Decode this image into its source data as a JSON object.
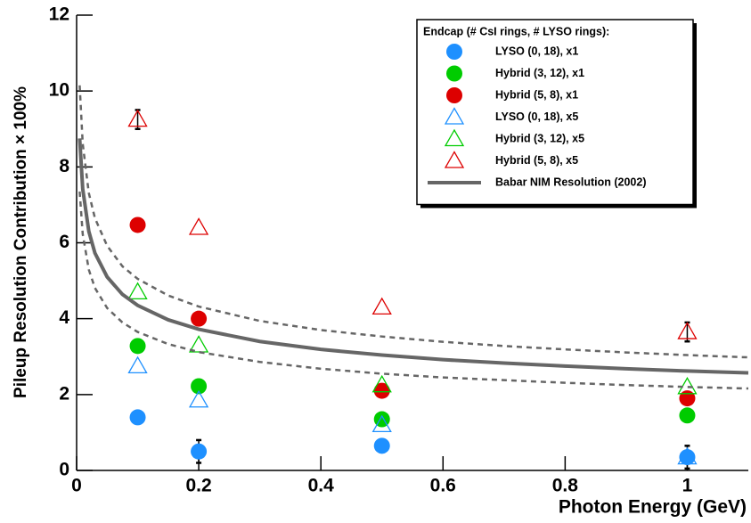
{
  "chart_data": {
    "type": "scatter",
    "x_label": "Photon Energy (GeV)",
    "y_label": "Pileup Resolution Contribution × 100%",
    "legend_title": "Endcap (# CsI rings, # LYSO rings):",
    "legend_position": "upper right",
    "xlim": [
      0,
      1.1
    ],
    "ylim": [
      0,
      12
    ],
    "xticks": [
      0,
      0.2,
      0.4,
      0.6,
      0.8,
      1
    ],
    "yticks": [
      0,
      2,
      4,
      6,
      8,
      10,
      12
    ],
    "series": [
      {
        "name": "LYSO (0, 18), x1",
        "color": "#1e90ff",
        "marker": "circle",
        "x": [
          0.1,
          0.2,
          0.5,
          1.0
        ],
        "values": [
          1.4,
          0.5,
          0.65,
          0.35
        ],
        "errors": [
          null,
          0.3,
          null,
          0.3
        ]
      },
      {
        "name": "Hybrid (3, 12), x1",
        "color": "#00cc00",
        "marker": "circle",
        "x": [
          0.1,
          0.2,
          0.5,
          1.0
        ],
        "values": [
          3.28,
          2.22,
          1.35,
          1.45
        ]
      },
      {
        "name": "Hybrid (5, 8), x1",
        "color": "#dd0000",
        "marker": "circle",
        "x": [
          0.1,
          0.2,
          0.5,
          1.0
        ],
        "values": [
          6.47,
          4.0,
          2.1,
          1.9
        ]
      },
      {
        "name": "LYSO (0, 18), x5",
        "color": "#1e90ff",
        "marker": "triangle",
        "x": [
          0.1,
          0.2,
          0.5,
          1.0
        ],
        "values": [
          2.75,
          1.85,
          1.2,
          0.35
        ]
      },
      {
        "name": "Hybrid (3, 12), x5",
        "color": "#00cc00",
        "marker": "triangle",
        "x": [
          0.1,
          0.2,
          0.5,
          1.0
        ],
        "values": [
          4.7,
          3.3,
          2.25,
          2.2
        ]
      },
      {
        "name": "Hybrid (5, 8), x5",
        "color": "#dd0000",
        "marker": "triangle",
        "x": [
          0.1,
          0.2,
          0.5,
          1.0
        ],
        "values": [
          9.25,
          6.4,
          4.3,
          3.65
        ],
        "errors": [
          0.25,
          null,
          null,
          0.25
        ]
      },
      {
        "name": "Babar NIM Resolution (2002)",
        "color": "#666666",
        "marker": "line",
        "x": [
          0.005,
          0.01,
          0.02,
          0.03,
          0.05,
          0.075,
          0.1,
          0.15,
          0.2,
          0.3,
          0.4,
          0.5,
          0.6,
          0.7,
          0.8,
          0.9,
          1.0,
          1.1
        ],
        "values": [
          8.75,
          7.42,
          6.3,
          5.73,
          5.1,
          4.64,
          4.35,
          3.97,
          3.72,
          3.4,
          3.19,
          3.04,
          2.92,
          2.83,
          2.75,
          2.68,
          2.62,
          2.57
        ]
      },
      {
        "color": "#666666",
        "marker": "dashed",
        "x": [
          0.005,
          0.01,
          0.02,
          0.03,
          0.05,
          0.075,
          0.1,
          0.15,
          0.2,
          0.3,
          0.4,
          0.5,
          0.6,
          0.7,
          0.8,
          0.9,
          1.0,
          1.1
        ],
        "values": [
          10.15,
          8.61,
          7.31,
          6.65,
          5.92,
          5.38,
          5.05,
          4.61,
          4.32,
          3.94,
          3.7,
          3.53,
          3.39,
          3.28,
          3.19,
          3.11,
          3.04,
          2.98
        ]
      },
      {
        "color": "#666666",
        "marker": "dashed",
        "x": [
          0.005,
          0.01,
          0.02,
          0.03,
          0.05,
          0.075,
          0.1,
          0.15,
          0.2,
          0.3,
          0.4,
          0.5,
          0.6,
          0.7,
          0.8,
          0.9,
          1.0,
          1.1
        ],
        "values": [
          7.35,
          6.23,
          5.29,
          4.81,
          4.28,
          3.9,
          3.65,
          3.33,
          3.12,
          2.86,
          2.68,
          2.55,
          2.45,
          2.38,
          2.31,
          2.25,
          2.2,
          2.16
        ]
      }
    ]
  }
}
